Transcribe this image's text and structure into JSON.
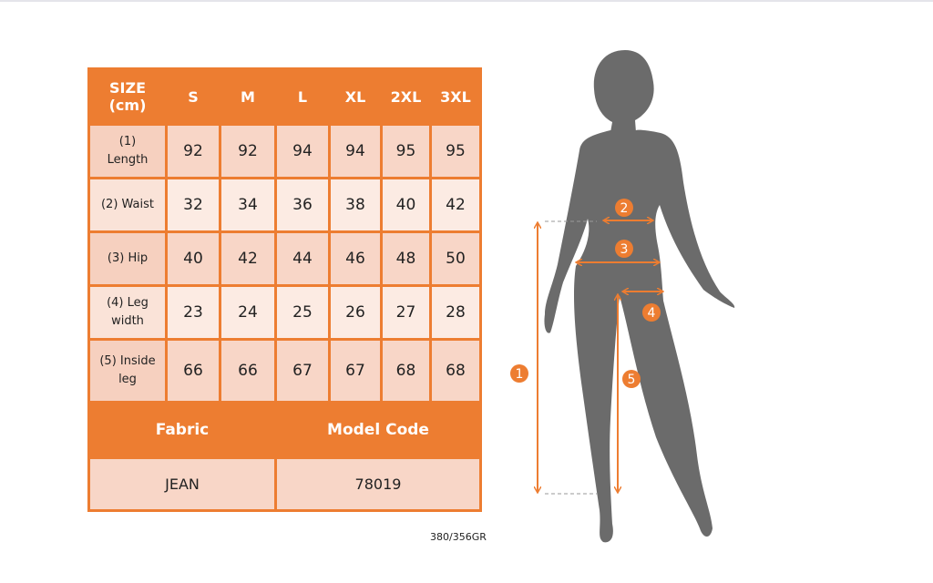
{
  "table": {
    "header": {
      "label": "SIZE\n(cm)",
      "label_line1": "SIZE",
      "label_line2": "(cm)",
      "sizes": [
        "S",
        "M",
        "L",
        "XL",
        "2XL",
        "3XL"
      ]
    },
    "rows": [
      {
        "label_line1": "(1)",
        "label_line2": "Length",
        "values": [
          "92",
          "92",
          "94",
          "94",
          "95",
          "95"
        ]
      },
      {
        "label_line1": "(2) Waist",
        "label_line2": "",
        "values": [
          "32",
          "34",
          "36",
          "38",
          "40",
          "42"
        ]
      },
      {
        "label_line1": "(3) Hip",
        "label_line2": "",
        "values": [
          "40",
          "42",
          "44",
          "46",
          "48",
          "50"
        ]
      },
      {
        "label_line1": "(4) Leg",
        "label_line2": "width",
        "values": [
          "23",
          "24",
          "25",
          "26",
          "27",
          "28"
        ]
      },
      {
        "label_line1": "(5) Inside",
        "label_line2": "leg",
        "values": [
          "66",
          "66",
          "67",
          "67",
          "68",
          "68"
        ]
      }
    ],
    "fabric_label": "Fabric",
    "model_code_label": "Model Code",
    "fabric_value": "JEAN",
    "model_code_value": "78019"
  },
  "figure": {
    "markers": [
      "1",
      "2",
      "3",
      "4",
      "5"
    ],
    "accent_color": "#ED7D31",
    "silhouette_color": "#6b6b6b"
  },
  "caption": "380/356GR"
}
